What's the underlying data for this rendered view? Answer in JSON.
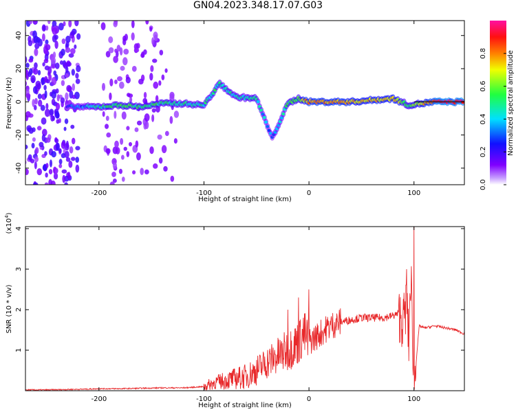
{
  "title": "GN04.2023.348.17.07.G03",
  "colors": {
    "snr_line": "#e8282a",
    "axis": "#000000",
    "background": "#ffffff"
  },
  "chart_data": [
    {
      "type": "heatmap",
      "xlabel": "Height of straight line (km)",
      "ylabel": "Frequency (Hz)",
      "xlim": [
        -270,
        148
      ],
      "ylim": [
        -50,
        49
      ],
      "xticks": [
        -200,
        -100,
        0,
        100
      ],
      "yticks": [
        -40,
        -20,
        0,
        20,
        40
      ],
      "colorbar": {
        "label": "Normalized spectral amplitude",
        "range": [
          0.0,
          1.0
        ],
        "ticks": [
          0.0,
          0.2,
          0.4,
          0.6,
          0.8
        ],
        "tick_labels": [
          "0.0",
          "0.2",
          "0.4",
          "0.6",
          "0.8"
        ],
        "colormap": "rainbow (white, purple, blue, cyan, green, yellow, orange, red, magenta)"
      },
      "ridge": [
        {
          "x": -230,
          "freq": -3,
          "amp": 0.25
        },
        {
          "x": -200,
          "freq": -3,
          "amp": 0.45
        },
        {
          "x": -180,
          "freq": -2,
          "amp": 0.55
        },
        {
          "x": -160,
          "freq": -3,
          "amp": 0.5
        },
        {
          "x": -140,
          "freq": -1,
          "amp": 0.5
        },
        {
          "x": -120,
          "freq": -1,
          "amp": 0.5
        },
        {
          "x": -100,
          "freq": -2,
          "amp": 0.45
        },
        {
          "x": -85,
          "freq": 11,
          "amp": 0.5
        },
        {
          "x": -70,
          "freq": 3,
          "amp": 0.45
        },
        {
          "x": -50,
          "freq": 2,
          "amp": 0.45
        },
        {
          "x": -35,
          "freq": -22,
          "amp": 0.3
        },
        {
          "x": -20,
          "freq": -1,
          "amp": 0.5
        },
        {
          "x": -10,
          "freq": 2,
          "amp": 0.6
        },
        {
          "x": 0,
          "freq": 0,
          "amp": 0.8
        },
        {
          "x": 20,
          "freq": 0,
          "amp": 0.8
        },
        {
          "x": 40,
          "freq": 0,
          "amp": 0.75
        },
        {
          "x": 60,
          "freq": 1,
          "amp": 0.7
        },
        {
          "x": 80,
          "freq": 2,
          "amp": 0.75
        },
        {
          "x": 95,
          "freq": -2,
          "amp": 0.5
        },
        {
          "x": 120,
          "freq": 0,
          "amp": 0.9
        },
        {
          "x": 148,
          "freq": 0,
          "amp": 0.9
        }
      ]
    },
    {
      "type": "line",
      "xlabel": "Height of straight line (km)",
      "ylabel": "SNR (10 * v/v)",
      "y_multiplier_label": "(x10",
      "y_multiplier_exp": "4",
      "y_multiplier_close": ")",
      "xlim": [
        -270,
        148
      ],
      "ylim": [
        0,
        4.05
      ],
      "xticks": [
        -200,
        -100,
        0,
        100
      ],
      "yticks": [
        1,
        2,
        3,
        4
      ],
      "series": [
        {
          "x": [
            -270,
            -250,
            -230,
            -210,
            -200,
            -180,
            -160,
            -140,
            -120,
            -100,
            -90,
            -80,
            -70,
            -60,
            -50,
            -40,
            -30,
            -20,
            -10,
            -5,
            0,
            10,
            20,
            30,
            40,
            50,
            60,
            70,
            80,
            85,
            90,
            93,
            95,
            97,
            100,
            105,
            110,
            120,
            130,
            140,
            148
          ],
          "values": [
            0.02,
            0.02,
            0.03,
            0.04,
            0.05,
            0.05,
            0.06,
            0.07,
            0.07,
            0.1,
            0.2,
            0.25,
            0.3,
            0.35,
            0.5,
            0.7,
            0.85,
            1.0,
            1.2,
            1.4,
            1.2,
            1.4,
            1.6,
            1.7,
            1.75,
            1.8,
            1.8,
            1.8,
            1.85,
            1.9,
            1.7,
            2.2,
            1.2,
            3.0,
            0.1,
            1.6,
            1.55,
            1.6,
            1.55,
            1.5,
            1.4
          ],
          "spikes": [
            {
              "x": 0,
              "y": 2.5
            },
            {
              "x": -10,
              "y": 2.3
            },
            {
              "x": -20,
              "y": 2.0
            },
            {
              "x": 93,
              "y": 3.0
            },
            {
              "x": 100,
              "y": 4.1
            },
            {
              "x": 97,
              "y": 2.4
            }
          ]
        }
      ]
    }
  ]
}
